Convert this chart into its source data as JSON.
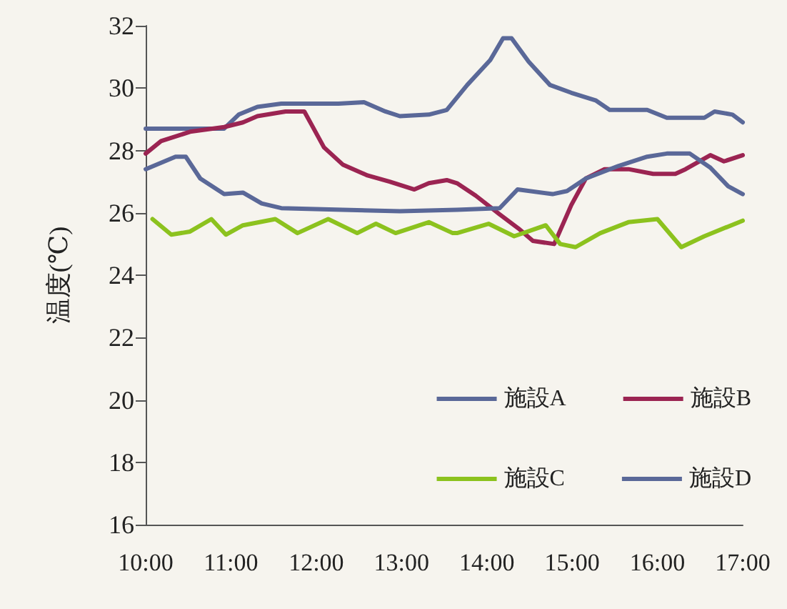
{
  "chart_data": {
    "type": "line",
    "ylabel": "温度(℃)",
    "xlim": [
      10,
      17
    ],
    "ylim": [
      16,
      32
    ],
    "xticks": [
      {
        "value": 10,
        "label": "10:00"
      },
      {
        "value": 11,
        "label": "11:00"
      },
      {
        "value": 12,
        "label": "12:00"
      },
      {
        "value": 13,
        "label": "13:00"
      },
      {
        "value": 14,
        "label": "14:00"
      },
      {
        "value": 15,
        "label": "15:00"
      },
      {
        "value": 16,
        "label": "16:00"
      },
      {
        "value": 17,
        "label": "17:00"
      }
    ],
    "yticks": [
      16,
      18,
      20,
      22,
      24,
      26,
      28,
      30,
      32
    ],
    "grid": false,
    "legend": "bottom right",
    "marker": "none",
    "line_style": "solid",
    "series": [
      {
        "name": "施設A",
        "color": "#5a6898",
        "x": [
          10.0,
          10.3,
          10.92,
          11.09,
          11.31,
          11.59,
          12.26,
          12.56,
          12.81,
          12.98,
          13.32,
          13.53,
          13.77,
          14.04,
          14.19,
          14.29,
          14.49,
          14.74,
          14.99,
          15.28,
          15.44,
          15.88,
          16.11,
          16.55,
          16.67,
          16.88,
          17.0
        ],
        "values": [
          28.7,
          28.7,
          28.7,
          29.15,
          29.4,
          29.5,
          29.5,
          29.55,
          29.25,
          29.1,
          29.15,
          29.3,
          30.1,
          30.9,
          31.6,
          31.6,
          30.85,
          30.1,
          29.85,
          29.6,
          29.3,
          29.3,
          29.05,
          29.05,
          29.25,
          29.15,
          28.9
        ]
      },
      {
        "name": "施設B",
        "color": "#9b2452",
        "x": [
          10.0,
          10.18,
          10.52,
          10.92,
          11.14,
          11.31,
          11.64,
          11.86,
          11.94,
          12.09,
          12.31,
          12.6,
          12.86,
          13.15,
          13.32,
          13.53,
          13.65,
          13.87,
          14.15,
          14.37,
          14.54,
          14.79,
          14.99,
          15.16,
          15.38,
          15.66,
          15.95,
          16.21,
          16.33,
          16.62,
          16.78,
          17.0
        ],
        "values": [
          27.9,
          28.3,
          28.6,
          28.75,
          28.9,
          29.1,
          29.25,
          29.25,
          28.85,
          28.1,
          27.55,
          27.2,
          27.0,
          26.75,
          26.95,
          27.05,
          26.95,
          26.55,
          25.95,
          25.5,
          25.1,
          25.0,
          26.25,
          27.1,
          27.4,
          27.4,
          27.25,
          27.25,
          27.4,
          27.85,
          27.65,
          27.85
        ]
      },
      {
        "name": "施設C",
        "color": "#8cc21e",
        "x": [
          10.08,
          10.3,
          10.52,
          10.77,
          10.94,
          11.14,
          11.52,
          11.78,
          12.14,
          12.48,
          12.7,
          12.93,
          13.32,
          13.6,
          13.65,
          14.02,
          14.32,
          14.69,
          14.86,
          15.04,
          15.33,
          15.66,
          16.0,
          16.28,
          16.55,
          17.0
        ],
        "values": [
          25.8,
          25.3,
          25.4,
          25.8,
          25.3,
          25.6,
          25.8,
          25.35,
          25.8,
          25.35,
          25.65,
          25.35,
          25.7,
          25.35,
          25.35,
          25.65,
          25.25,
          25.6,
          25.0,
          24.9,
          25.35,
          25.7,
          25.8,
          24.9,
          25.25,
          25.75
        ]
      },
      {
        "name": "施設D",
        "color": "#5a6898",
        "x": [
          10.0,
          10.35,
          10.47,
          10.64,
          10.92,
          11.14,
          11.36,
          11.59,
          12.31,
          12.98,
          13.65,
          14.15,
          14.36,
          14.77,
          14.94,
          15.16,
          15.54,
          15.88,
          16.11,
          16.38,
          16.62,
          16.83,
          17.0
        ],
        "values": [
          27.4,
          27.8,
          27.8,
          27.1,
          26.6,
          26.65,
          26.3,
          26.15,
          26.1,
          26.05,
          26.1,
          26.15,
          26.75,
          26.6,
          26.7,
          27.1,
          27.5,
          27.8,
          27.9,
          27.9,
          27.45,
          26.85,
          26.6
        ]
      }
    ]
  }
}
